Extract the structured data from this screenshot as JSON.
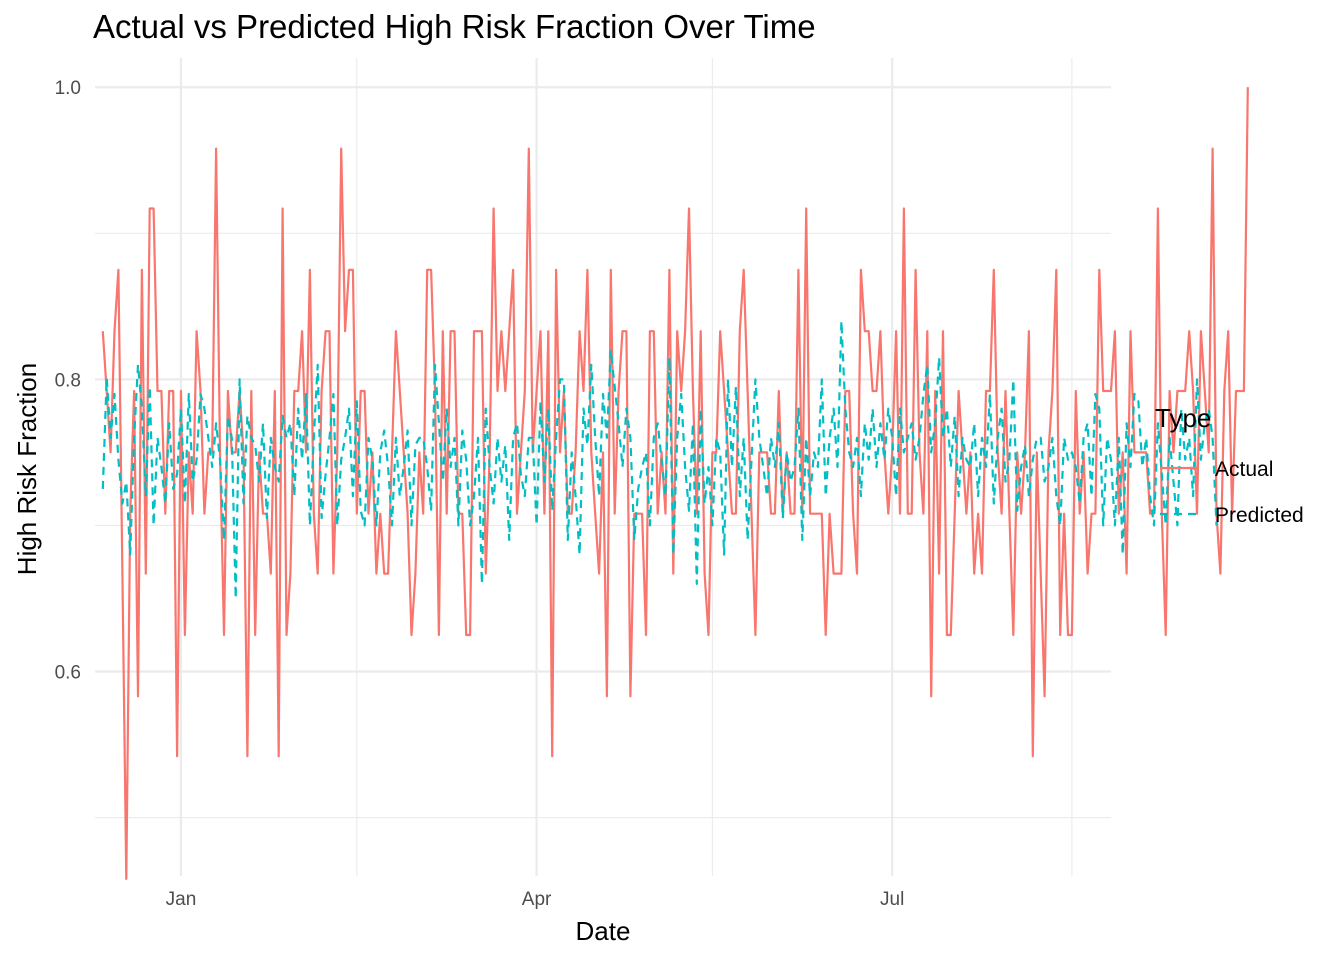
{
  "chart_data": {
    "type": "line",
    "title": "Actual vs Predicted High Risk Fraction Over Time",
    "xlabel": "Date",
    "ylabel": "High Risk Fraction",
    "x_range": [
      "2023-12-10",
      "2024-08-26"
    ],
    "ylim": [
      0.46,
      1.02
    ],
    "x_ticks": [
      {
        "date": "2024-01-01",
        "label": "Jan"
      },
      {
        "date": "2024-04-01",
        "label": "Apr"
      },
      {
        "date": "2024-07-01",
        "label": "Jul"
      }
    ],
    "x_minor_ticks": [
      "2024-02-15",
      "2024-05-16",
      "2024-08-16"
    ],
    "y_ticks": [
      {
        "value": 0.6,
        "label": "0.6"
      },
      {
        "value": 0.8,
        "label": "0.8"
      },
      {
        "value": 1.0,
        "label": "1.0"
      }
    ],
    "y_minor_ticks": [
      0.5,
      0.7,
      0.9
    ],
    "grid": true,
    "legend": {
      "title": "Type",
      "position": "right"
    },
    "start_date": "2023-12-12",
    "series": [
      {
        "name": "Actual",
        "color": "#F8766D",
        "dash": "solid",
        "values": [
          0.833,
          0.792,
          0.75,
          0.833,
          0.875,
          0.667,
          0.458,
          0.708,
          0.792,
          0.583,
          0.875,
          0.667,
          0.917,
          0.917,
          0.792,
          0.792,
          0.708,
          0.792,
          0.792,
          0.542,
          0.792,
          0.625,
          0.75,
          0.708,
          0.833,
          0.792,
          0.708,
          0.75,
          0.75,
          0.958,
          0.75,
          0.625,
          0.792,
          0.75,
          0.75,
          0.792,
          0.75,
          0.542,
          0.792,
          0.625,
          0.75,
          0.708,
          0.708,
          0.667,
          0.792,
          0.542,
          0.917,
          0.625,
          0.667,
          0.792,
          0.792,
          0.833,
          0.75,
          0.875,
          0.708,
          0.667,
          0.792,
          0.833,
          0.833,
          0.667,
          0.75,
          0.958,
          0.833,
          0.875,
          0.875,
          0.708,
          0.792,
          0.792,
          0.708,
          0.75,
          0.667,
          0.708,
          0.667,
          0.667,
          0.75,
          0.833,
          0.792,
          0.75,
          0.708,
          0.625,
          0.667,
          0.75,
          0.708,
          0.875,
          0.875,
          0.792,
          0.625,
          0.833,
          0.708,
          0.833,
          0.833,
          0.708,
          0.708,
          0.625,
          0.625,
          0.833,
          0.833,
          0.833,
          0.667,
          0.75,
          0.917,
          0.792,
          0.833,
          0.792,
          0.833,
          0.875,
          0.708,
          0.75,
          0.792,
          0.958,
          0.75,
          0.792,
          0.833,
          0.708,
          0.833,
          0.542,
          0.875,
          0.75,
          0.792,
          0.708,
          0.708,
          0.75,
          0.833,
          0.792,
          0.875,
          0.75,
          0.708,
          0.667,
          0.75,
          0.583,
          0.875,
          0.708,
          0.792,
          0.833,
          0.833,
          0.583,
          0.708,
          0.708,
          0.708,
          0.625,
          0.833,
          0.833,
          0.708,
          0.75,
          0.708,
          0.875,
          0.667,
          0.833,
          0.792,
          0.833,
          0.917,
          0.792,
          0.708,
          0.833,
          0.667,
          0.625,
          0.75,
          0.75,
          0.833,
          0.792,
          0.75,
          0.708,
          0.708,
          0.833,
          0.875,
          0.792,
          0.708,
          0.625,
          0.75,
          0.75,
          0.75,
          0.708,
          0.708,
          0.792,
          0.708,
          0.75,
          0.708,
          0.708,
          0.875,
          0.708,
          0.917,
          0.708,
          0.708,
          0.708,
          0.708,
          0.625,
          0.708,
          0.667,
          0.667,
          0.667,
          0.792,
          0.792,
          0.708,
          0.667,
          0.875,
          0.833,
          0.833,
          0.792,
          0.792,
          0.833,
          0.75,
          0.708,
          0.75,
          0.833,
          0.708,
          0.917,
          0.708,
          0.708,
          0.875,
          0.75,
          0.708,
          0.833,
          0.583,
          0.792,
          0.667,
          0.833,
          0.625,
          0.625,
          0.708,
          0.792,
          0.75,
          0.708,
          0.75,
          0.667,
          0.708,
          0.667,
          0.792,
          0.792,
          0.875,
          0.75,
          0.708,
          0.792,
          0.708,
          0.625,
          0.75,
          0.708,
          0.75,
          0.833,
          0.542,
          0.75,
          0.667,
          0.583,
          0.75,
          0.792,
          0.875,
          0.625,
          0.708,
          0.625,
          0.625,
          0.792,
          0.708,
          0.75,
          0.667,
          0.708,
          0.708,
          0.875,
          0.792,
          0.792,
          0.792,
          0.833,
          0.708,
          0.75,
          0.667,
          0.833,
          0.75,
          0.75,
          0.75,
          0.75,
          0.708,
          0.708,
          0.917,
          0.708,
          0.625,
          0.792,
          0.75,
          0.792,
          0.792,
          0.792,
          0.833,
          0.792,
          0.708,
          0.833,
          0.792,
          0.75,
          0.958,
          0.708,
          0.667,
          0.792,
          0.833,
          0.708,
          0.792,
          0.792,
          0.792,
          1.0
        ]
      },
      {
        "name": "Predicted",
        "color": "#00BFC4",
        "dash": "dashed",
        "values": [
          0.725,
          0.801,
          0.76,
          0.79,
          0.745,
          0.715,
          0.73,
          0.68,
          0.76,
          0.81,
          0.78,
          0.72,
          0.795,
          0.7,
          0.76,
          0.74,
          0.715,
          0.77,
          0.725,
          0.735,
          0.78,
          0.715,
          0.79,
          0.73,
          0.745,
          0.79,
          0.78,
          0.76,
          0.74,
          0.77,
          0.745,
          0.69,
          0.775,
          0.76,
          0.65,
          0.8,
          0.715,
          0.775,
          0.76,
          0.755,
          0.73,
          0.77,
          0.705,
          0.76,
          0.74,
          0.73,
          0.775,
          0.76,
          0.77,
          0.72,
          0.78,
          0.745,
          0.79,
          0.7,
          0.76,
          0.81,
          0.705,
          0.735,
          0.76,
          0.79,
          0.7,
          0.745,
          0.76,
          0.78,
          0.72,
          0.785,
          0.71,
          0.7,
          0.76,
          0.745,
          0.7,
          0.75,
          0.765,
          0.74,
          0.7,
          0.76,
          0.72,
          0.74,
          0.765,
          0.7,
          0.755,
          0.76,
          0.76,
          0.74,
          0.71,
          0.81,
          0.77,
          0.73,
          0.78,
          0.74,
          0.76,
          0.7,
          0.765,
          0.745,
          0.7,
          0.72,
          0.76,
          0.66,
          0.78,
          0.74,
          0.715,
          0.76,
          0.73,
          0.755,
          0.69,
          0.76,
          0.77,
          0.735,
          0.72,
          0.76,
          0.76,
          0.7,
          0.785,
          0.73,
          0.78,
          0.71,
          0.76,
          0.8,
          0.8,
          0.69,
          0.75,
          0.72,
          0.68,
          0.78,
          0.755,
          0.81,
          0.76,
          0.72,
          0.79,
          0.76,
          0.82,
          0.795,
          0.77,
          0.74,
          0.78,
          0.76,
          0.69,
          0.725,
          0.74,
          0.75,
          0.7,
          0.76,
          0.77,
          0.745,
          0.72,
          0.815,
          0.68,
          0.76,
          0.79,
          0.74,
          0.71,
          0.77,
          0.66,
          0.78,
          0.715,
          0.74,
          0.7,
          0.76,
          0.75,
          0.68,
          0.8,
          0.74,
          0.795,
          0.72,
          0.76,
          0.69,
          0.745,
          0.8,
          0.76,
          0.74,
          0.72,
          0.76,
          0.74,
          0.77,
          0.705,
          0.75,
          0.73,
          0.74,
          0.78,
          0.69,
          0.76,
          0.72,
          0.75,
          0.74,
          0.8,
          0.72,
          0.76,
          0.78,
          0.74,
          0.84,
          0.78,
          0.75,
          0.74,
          0.76,
          0.72,
          0.77,
          0.745,
          0.78,
          0.74,
          0.77,
          0.745,
          0.78,
          0.76,
          0.72,
          0.78,
          0.75,
          0.76,
          0.77,
          0.745,
          0.76,
          0.79,
          0.81,
          0.75,
          0.77,
          0.815,
          0.76,
          0.78,
          0.74,
          0.775,
          0.72,
          0.76,
          0.745,
          0.74,
          0.77,
          0.72,
          0.76,
          0.74,
          0.79,
          0.715,
          0.76,
          0.78,
          0.73,
          0.745,
          0.8,
          0.71,
          0.74,
          0.755,
          0.72,
          0.745,
          0.76,
          0.76,
          0.73,
          0.74,
          0.76,
          0.72,
          0.7,
          0.76,
          0.745,
          0.75,
          0.74,
          0.715,
          0.76,
          0.77,
          0.72,
          0.79,
          0.78,
          0.7,
          0.76,
          0.745,
          0.7,
          0.76,
          0.68,
          0.77,
          0.74,
          0.79,
          0.785,
          0.74,
          0.76,
          0.72,
          0.7,
          0.77,
          0.735,
          0.7,
          0.76,
          0.73,
          0.7,
          0.78,
          0.745,
          0.76,
          0.72,
          0.8,
          0.745,
          0.77,
          0.78,
          0.76,
          0.7
        ]
      }
    ]
  }
}
